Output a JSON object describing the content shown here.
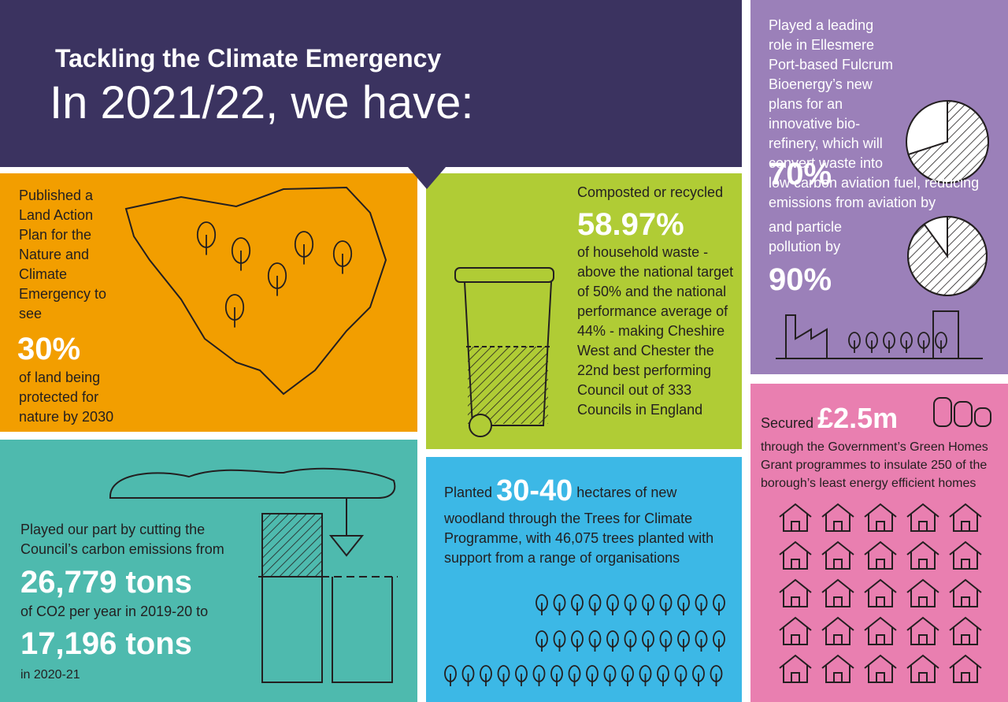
{
  "header": {
    "title": "Tackling the Climate Emergency",
    "subtitle": "In 2021/22, we have:"
  },
  "land": {
    "intro": "Published a Land Action Plan for the Nature and Climate Emergency to see",
    "stat": "30%",
    "outro": "of land being protected for nature by 2030"
  },
  "waste": {
    "intro": "Composted or recycled",
    "stat": "58.97%",
    "outro": "of household waste - above the national target of 50% and the national performance average of 44% - making Cheshire West and Chester the 22nd best performing Council out of 333 Councils in England"
  },
  "bioenergy": {
    "intro": "Played a leading role in Ellesmere Port-based Fulcrum Bioenergy’s new plans for an innovative bio-refinery, which will convert waste into low carbon aviation fuel, reducing emissions from aviation by",
    "aviation": {
      "value": 70,
      "label": "70%"
    },
    "particle_intro": "and particle pollution by",
    "particle": {
      "value": 90,
      "label": "90%"
    }
  },
  "carbon": {
    "intro": "Played our part by cutting the Council’s carbon emissions from",
    "from": "26,779 tons",
    "middle": "of CO2 per year in 2019-20 to",
    "to": "17,196 tons",
    "outro": "in 2020-21"
  },
  "woodland": {
    "intro": "Planted",
    "stat": "30-40",
    "outro": "hectares of new woodland through the Trees for Climate Programme, with 46,075 trees planted with support from a range of organisations"
  },
  "homes": {
    "intro": "Secured",
    "stat": "£2.5m",
    "outro": "through the Government’s Green Homes Grant programmes to insulate 250 of the borough’s least energy efficient homes"
  }
}
